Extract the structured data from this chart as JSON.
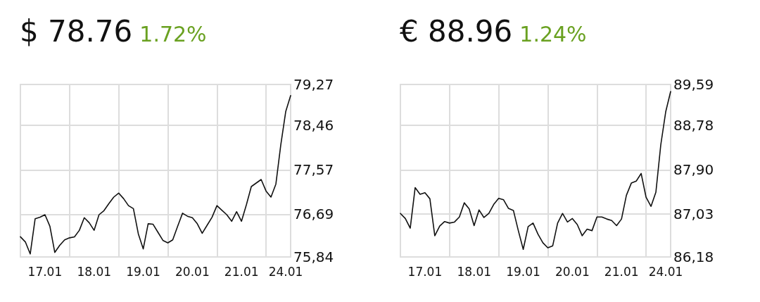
{
  "chart_data": [
    {
      "type": "line",
      "title": "$ 78.76",
      "subtitle": "1.72%",
      "grid": true,
      "categories": [
        null,
        null,
        null,
        null,
        null,
        "17.01",
        null,
        null,
        null,
        null,
        null,
        null,
        null,
        null,
        null,
        "18.01",
        null,
        null,
        null,
        null,
        null,
        null,
        null,
        null,
        null,
        "19.01",
        null,
        null,
        null,
        null,
        null,
        null,
        null,
        null,
        null,
        "20.01",
        null,
        null,
        null,
        null,
        null,
        null,
        null,
        null,
        null,
        "21.01",
        null,
        null,
        null,
        null,
        null,
        null,
        null,
        null,
        "24.01",
        null
      ],
      "ylim": [
        75.84,
        79.27
      ],
      "yticks": [
        {
          "value": 75.84,
          "label": "75,84"
        },
        {
          "value": 76.69,
          "label": "76,69"
        },
        {
          "value": 77.57,
          "label": "77,57"
        },
        {
          "value": 78.46,
          "label": "78,46"
        },
        {
          "value": 79.27,
          "label": "79,27"
        }
      ],
      "series": [
        {
          "color": "#111111",
          "values": [
            76.24,
            76.14,
            75.9,
            76.6,
            76.63,
            76.68,
            76.45,
            75.93,
            76.07,
            76.18,
            76.22,
            76.24,
            76.37,
            76.62,
            76.52,
            76.37,
            76.68,
            76.76,
            76.9,
            77.03,
            77.11,
            77.0,
            76.86,
            76.8,
            76.3,
            76.0,
            76.5,
            76.49,
            76.33,
            76.17,
            76.12,
            76.18,
            76.45,
            76.71,
            76.65,
            76.62,
            76.5,
            76.31,
            76.47,
            76.63,
            76.86,
            76.77,
            76.68,
            76.55,
            76.74,
            76.55,
            76.88,
            77.24,
            77.31,
            77.38,
            77.15,
            77.03,
            77.29,
            78.07,
            78.73,
            79.05
          ]
        }
      ]
    },
    {
      "type": "line",
      "title": "€ 88.96",
      "subtitle": "1.24%",
      "grid": true,
      "categories": [
        null,
        null,
        null,
        null,
        null,
        "17.01",
        null,
        null,
        null,
        null,
        null,
        null,
        null,
        null,
        null,
        "18.01",
        null,
        null,
        null,
        null,
        null,
        null,
        null,
        null,
        null,
        "19.01",
        null,
        null,
        null,
        null,
        null,
        null,
        null,
        null,
        null,
        "20.01",
        null,
        null,
        null,
        null,
        null,
        null,
        null,
        null,
        null,
        "21.01",
        null,
        null,
        null,
        null,
        null,
        null,
        null,
        null,
        "24.01",
        null
      ],
      "ylim": [
        86.18,
        89.59
      ],
      "yticks": [
        {
          "value": 86.18,
          "label": "86,18"
        },
        {
          "value": 87.03,
          "label": "87,03"
        },
        {
          "value": 87.9,
          "label": "87,90"
        },
        {
          "value": 88.78,
          "label": "88,78"
        },
        {
          "value": 89.59,
          "label": "89,59"
        }
      ],
      "series": [
        {
          "color": "#111111",
          "values": [
            87.04,
            86.94,
            86.75,
            87.55,
            87.42,
            87.45,
            87.33,
            86.6,
            86.79,
            86.88,
            86.85,
            86.87,
            86.97,
            87.25,
            87.13,
            86.8,
            87.11,
            86.96,
            87.04,
            87.22,
            87.34,
            87.31,
            87.14,
            87.1,
            86.7,
            86.33,
            86.78,
            86.85,
            86.63,
            86.46,
            86.36,
            86.4,
            86.85,
            87.04,
            86.87,
            86.94,
            86.82,
            86.6,
            86.73,
            86.7,
            86.97,
            86.97,
            86.93,
            86.9,
            86.8,
            86.93,
            87.4,
            87.64,
            87.68,
            87.83,
            87.36,
            87.18,
            87.46,
            88.4,
            89.05,
            89.45
          ]
        }
      ]
    }
  ]
}
